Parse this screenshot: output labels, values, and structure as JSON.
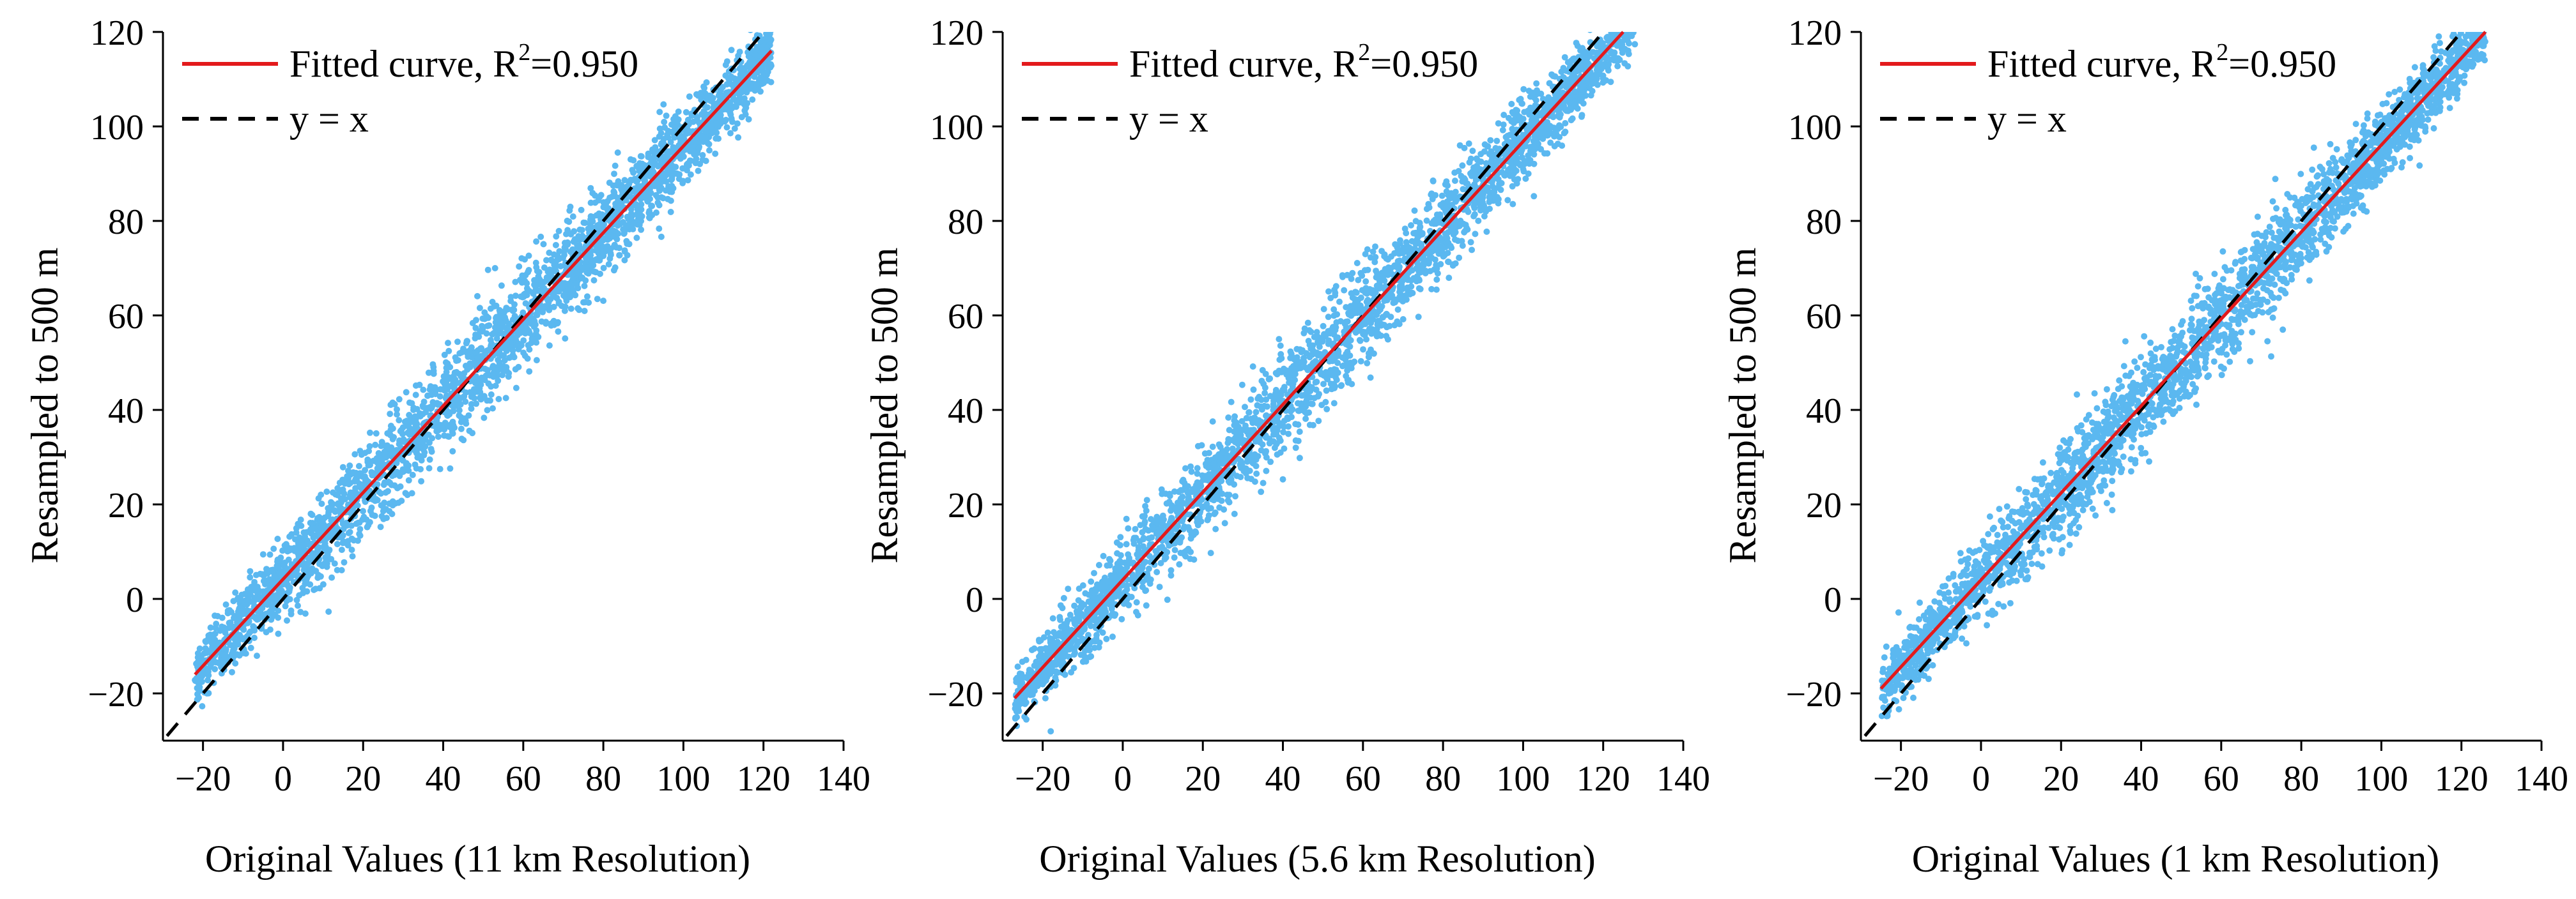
{
  "chart_data": [
    {
      "type": "scatter",
      "title": "",
      "xlabel": "Original Values (11 km Resolution)",
      "ylabel": "Resampled to 500 m",
      "xlim": [
        -30,
        140
      ],
      "ylim": [
        -30,
        120
      ],
      "xticks": [
        "−20",
        "0",
        "20",
        "40",
        "60",
        "80",
        "100",
        "120",
        "140"
      ],
      "xtick_values": [
        -20,
        0,
        20,
        40,
        60,
        80,
        100,
        120,
        140
      ],
      "yticks": [
        "−20",
        "0",
        "20",
        "40",
        "60",
        "80",
        "100",
        "120"
      ],
      "ytick_values": [
        -20,
        0,
        20,
        40,
        60,
        80,
        100,
        120
      ],
      "grid": false,
      "legend_position": "top-left",
      "legend": [
        {
          "label_prefix": "Fitted curve, R",
          "label_sup": "2",
          "label_suffix": "=0.950",
          "color": "#e31a1c",
          "style": "solid"
        },
        {
          "label": "y = x",
          "color": "#000000",
          "style": "dashed"
        }
      ],
      "fitted_line": {
        "x": [
          -22,
          122
        ],
        "y": [
          -16,
          116
        ]
      },
      "identity_line": {
        "x": [
          -29,
          120
        ],
        "y": [
          -29,
          120
        ]
      },
      "scatter": {
        "color": "#5bb8f0",
        "x_range": [
          -22,
          122
        ],
        "n_points": 2800,
        "slope": 0.917,
        "intercept": 4.2,
        "noise_sd": 5.5
      },
      "annotations": []
    },
    {
      "type": "scatter",
      "title": "",
      "xlabel": "Original Values (5.6 km Resolution)",
      "ylabel": "Resampled to 500 m",
      "xlim": [
        -30,
        140
      ],
      "ylim": [
        -30,
        120
      ],
      "xticks": [
        "−20",
        "0",
        "20",
        "40",
        "60",
        "80",
        "100",
        "120",
        "140"
      ],
      "xtick_values": [
        -20,
        0,
        20,
        40,
        60,
        80,
        100,
        120,
        140
      ],
      "yticks": [
        "−20",
        "0",
        "20",
        "40",
        "60",
        "80",
        "100",
        "120"
      ],
      "ytick_values": [
        -20,
        0,
        20,
        40,
        60,
        80,
        100,
        120
      ],
      "grid": false,
      "legend_position": "top-left",
      "legend": [
        {
          "label_prefix": "Fitted curve, R",
          "label_sup": "2",
          "label_suffix": "=0.950",
          "color": "#e31a1c",
          "style": "solid"
        },
        {
          "label": "y = x",
          "color": "#000000",
          "style": "dashed"
        }
      ],
      "fitted_line": {
        "x": [
          -27,
          125
        ],
        "y": [
          -21,
          120
        ]
      },
      "identity_line": {
        "x": [
          -29,
          120
        ],
        "y": [
          -29,
          120
        ]
      },
      "scatter": {
        "color": "#5bb8f0",
        "x_range": [
          -27,
          128
        ],
        "n_points": 2800,
        "slope": 0.93,
        "intercept": 4.0,
        "noise_sd": 5.5
      },
      "annotations": []
    },
    {
      "type": "scatter",
      "title": "",
      "xlabel": "Original Values (1 km Resolution)",
      "ylabel": "Resampled to 500 m",
      "xlim": [
        -30,
        140
      ],
      "ylim": [
        -30,
        120
      ],
      "xticks": [
        "−20",
        "0",
        "20",
        "40",
        "60",
        "80",
        "100",
        "120",
        "140"
      ],
      "xtick_values": [
        -20,
        0,
        20,
        40,
        60,
        80,
        100,
        120,
        140
      ],
      "yticks": [
        "−20",
        "0",
        "20",
        "40",
        "60",
        "80",
        "100",
        "120"
      ],
      "ytick_values": [
        -20,
        0,
        20,
        40,
        60,
        80,
        100,
        120
      ],
      "grid": false,
      "legend_position": "top-left",
      "legend": [
        {
          "label_prefix": "Fitted curve, R",
          "label_sup": "2",
          "label_suffix": "=0.950",
          "color": "#e31a1c",
          "style": "solid"
        },
        {
          "label": "y = x",
          "color": "#000000",
          "style": "dashed"
        }
      ],
      "fitted_line": {
        "x": [
          -25,
          126
        ],
        "y": [
          -19,
          120
        ]
      },
      "identity_line": {
        "x": [
          -29,
          120
        ],
        "y": [
          -29,
          120
        ]
      },
      "scatter": {
        "color": "#5bb8f0",
        "x_range": [
          -25,
          126
        ],
        "n_points": 2800,
        "slope": 0.92,
        "intercept": 4.0,
        "noise_sd": 5.5
      },
      "annotations": []
    }
  ]
}
